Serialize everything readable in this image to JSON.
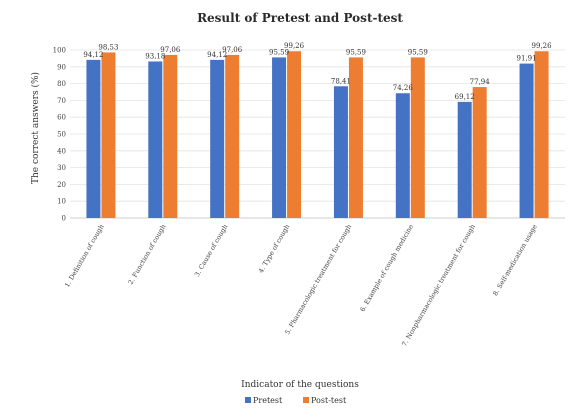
{
  "chart_data": {
    "type": "bar",
    "title": "Result of Pretest and Post-test",
    "xlabel": "Indicator of the questions",
    "ylabel": "The correct answers (%)",
    "ylim": [
      0,
      100
    ],
    "yticks": [
      0,
      10,
      20,
      30,
      40,
      50,
      60,
      70,
      80,
      90,
      100
    ],
    "grid": true,
    "legend_position": "bottom",
    "categories": [
      "1. Definition of cough",
      "2. Function of cough",
      "3. Cause of cough",
      "4. Type of cough",
      "5. Pharmacologic treatment for cough",
      "6. Example of cough medicine",
      "7. Nonpharmacologic treatment for cough",
      "8. Self-medication usage"
    ],
    "series": [
      {
        "name": "Pretest",
        "color": "#4472C4",
        "values": [
          94.12,
          93.18,
          94.12,
          95.59,
          78.41,
          74.26,
          69.12,
          91.91
        ],
        "labels": [
          "94,12",
          "93,18",
          "94,12",
          "95,59",
          "78,41",
          "74,26",
          "69,12",
          "91,91"
        ]
      },
      {
        "name": "Post-test",
        "color": "#ED7D31",
        "values": [
          98.53,
          97.06,
          97.06,
          99.26,
          95.59,
          95.59,
          77.94,
          99.26
        ],
        "labels": [
          "98,53",
          "97,06",
          "97,06",
          "99,26",
          "95,59",
          "95,59",
          "77,94",
          "99,26"
        ]
      }
    ]
  }
}
